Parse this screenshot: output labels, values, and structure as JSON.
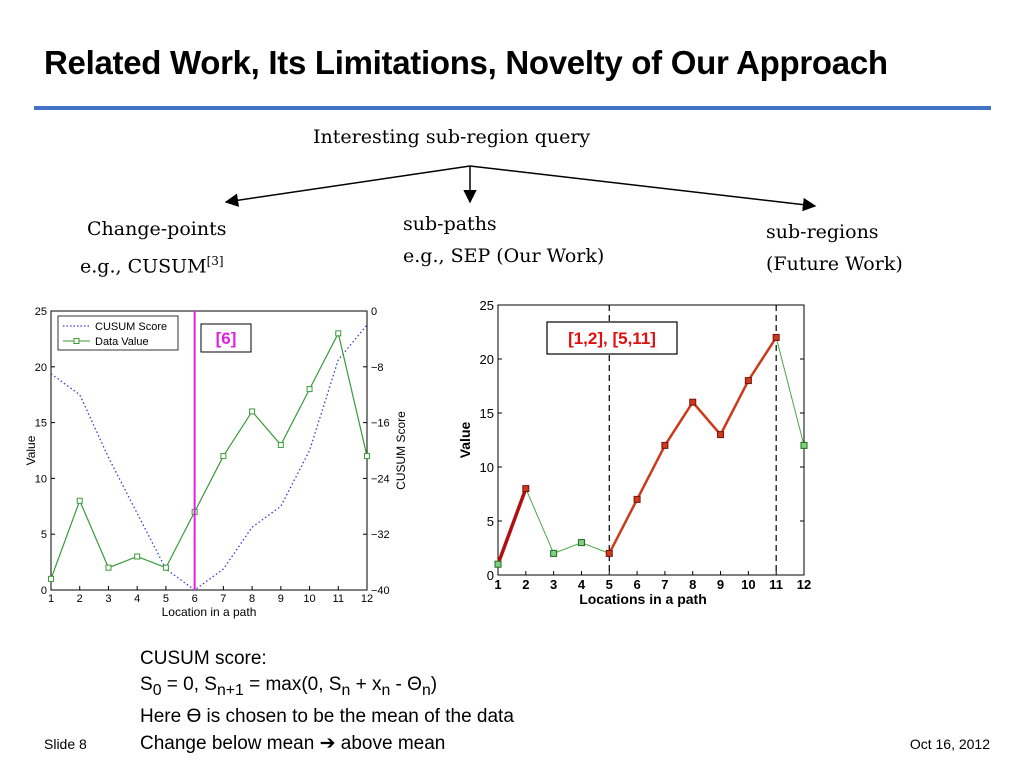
{
  "slide": {
    "title": "Related Work, Its Limitations, Novelty of Our Approach",
    "footer_left": "Slide 8",
    "footer_right": "Oct 16, 2012",
    "accent_color": "#4472c4"
  },
  "tree": {
    "root": "Interesting sub-region query",
    "branches": [
      {
        "line1": "Change-points",
        "line2": "e.g., CUSUM",
        "citation": "[3]"
      },
      {
        "line1": "sub-paths",
        "line2": "e.g., SEP (Our Work)"
      },
      {
        "line1": "sub-regions",
        "line2": "(Future Work)"
      }
    ]
  },
  "formula": {
    "heading": "CUSUM score:",
    "here_text": "Here Ɵ is chosen to be the mean of the data",
    "change_text": "Change below mean",
    "change_end": "above mean"
  },
  "chart_data": [
    {
      "type": "line",
      "x": [
        1,
        2,
        3,
        4,
        5,
        6,
        7,
        8,
        9,
        10,
        11,
        12
      ],
      "xlabel": "Location in a path",
      "ylabel": "Value",
      "y2label": "CUSUM Score",
      "xlim": [
        1,
        12
      ],
      "ylim": [
        0,
        25
      ],
      "y2lim": [
        -40,
        0
      ],
      "xticks": [
        "1",
        "2",
        "3",
        "4",
        "5",
        "6",
        "7",
        "8",
        "9",
        "10",
        "11",
        "12"
      ],
      "yticks": [
        "0",
        "5",
        "10",
        "15",
        "20",
        "25"
      ],
      "y2ticks": [
        "0",
        "−8",
        "−16",
        "−24",
        "−32",
        "−40"
      ],
      "series": [
        {
          "name": "CUSUM Score",
          "axis": "right",
          "style": "dotted",
          "color": "#3b3bd6",
          "values": [
            -9,
            -12,
            -21,
            -29,
            -37,
            -40,
            -37,
            -31,
            -28,
            -20,
            -7,
            -2
          ]
        },
        {
          "name": "Data Value",
          "axis": "left",
          "style": "solid-square",
          "color": "#3a9a3a",
          "values": [
            1,
            8,
            2,
            3,
            2,
            7,
            12,
            16,
            13,
            18,
            23,
            12
          ]
        }
      ],
      "legend": "top-left",
      "annotation": {
        "text": "[6]",
        "x": 6,
        "color": "#e020e0"
      },
      "grid": false
    },
    {
      "type": "line",
      "x": [
        1,
        2,
        3,
        4,
        5,
        6,
        7,
        8,
        9,
        10,
        11,
        12
      ],
      "xlabel": "Locations in a path",
      "ylabel": "Value",
      "xlim": [
        1,
        12
      ],
      "ylim": [
        0,
        25
      ],
      "xticks": [
        "1",
        "2",
        "3",
        "4",
        "5",
        "6",
        "7",
        "8",
        "9",
        "10",
        "11",
        "12"
      ],
      "yticks": [
        "0",
        "5",
        "10",
        "15",
        "20",
        "25"
      ],
      "values": [
        1,
        8,
        2,
        3,
        2,
        7,
        12,
        16,
        13,
        18,
        22,
        12
      ],
      "highlighted_segments": [
        [
          1,
          2
        ],
        [
          5,
          11
        ]
      ],
      "dashed_lines_x": [
        5,
        11
      ],
      "colors": {
        "base": "#4aa84a",
        "highlight": "#b01010",
        "highlight2": "#cc3a1a",
        "annotation": "#e01010"
      },
      "annotation": {
        "text": "[1,2], [5,11]"
      },
      "grid": false
    }
  ]
}
